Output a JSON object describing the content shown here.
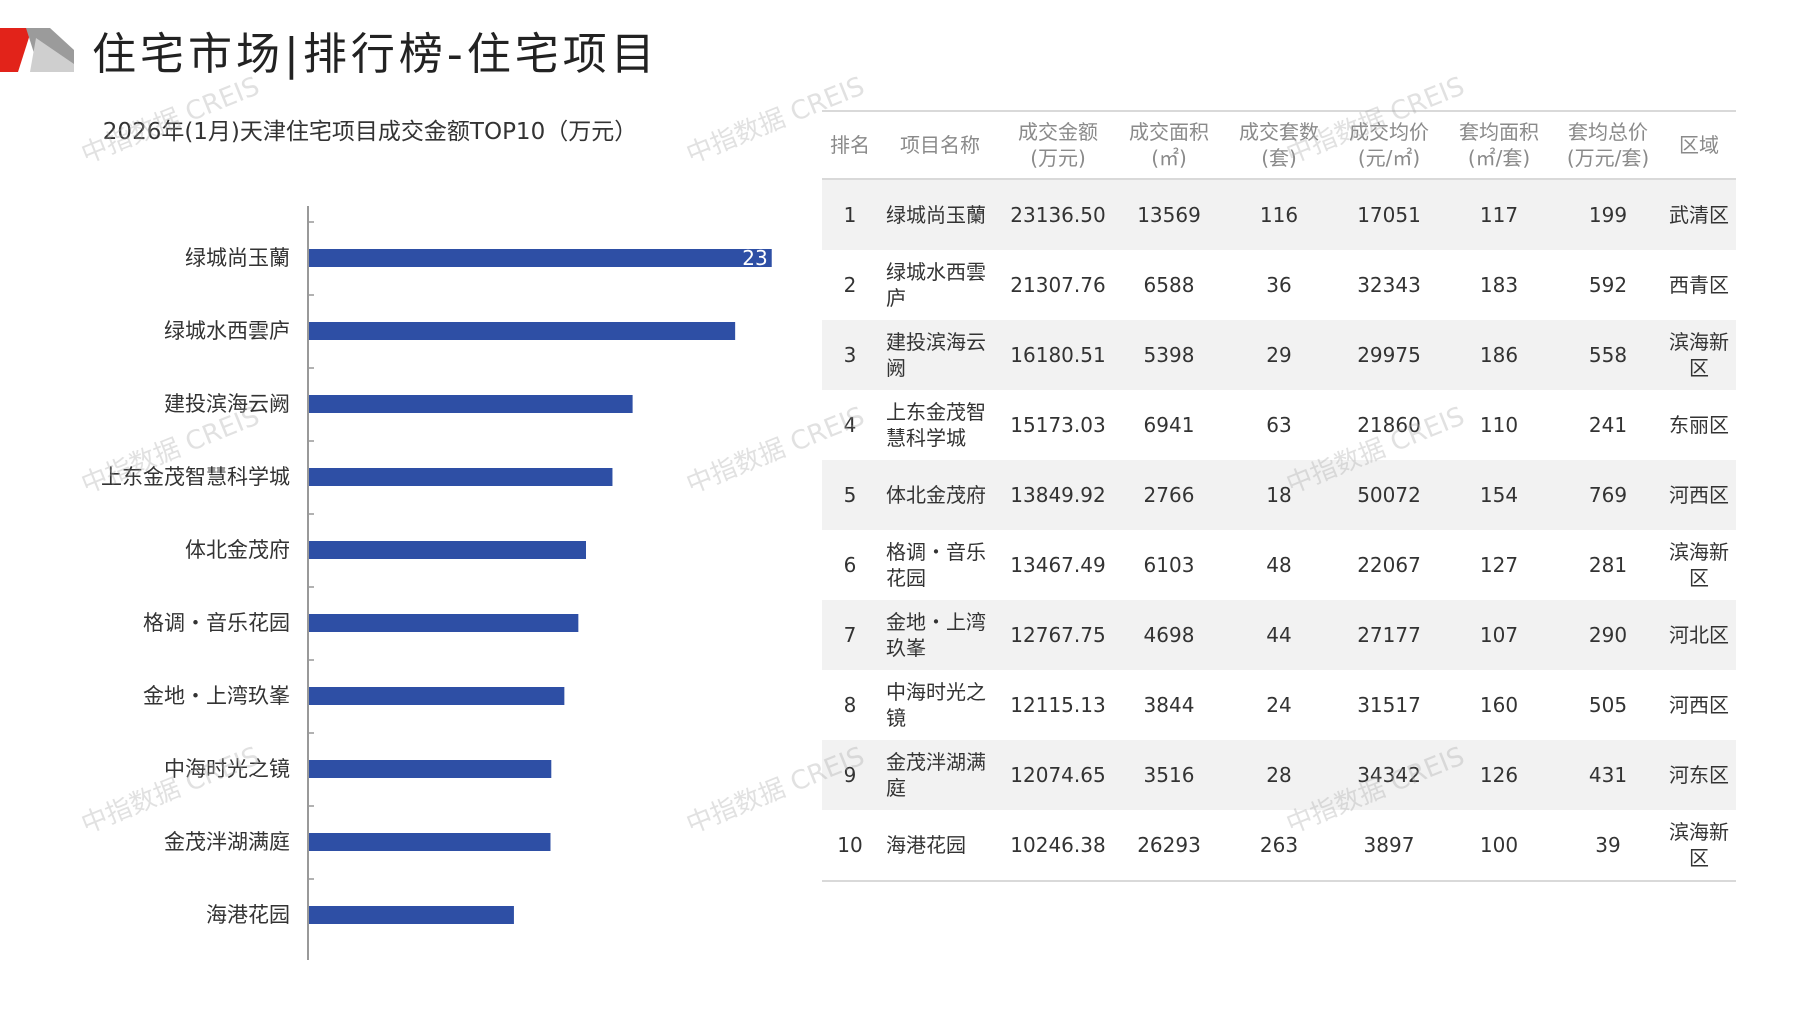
{
  "page": {
    "title": "住宅市场|排行榜-住宅项目",
    "colors": {
      "bar": "#2e4fa5",
      "logo_red": "#e2231a",
      "logo_gray": "#9b9b9b"
    }
  },
  "watermark": "中指数据 CREIS",
  "chart_data": {
    "type": "bar",
    "orientation": "horizontal",
    "title": "2026年(1月)天津住宅项目成交金额TOP10（万元）",
    "categories": [
      "绿城尚玉蘭",
      "绿城水西雲庐",
      "建投滨海云阙",
      "上东金茂智慧科学城",
      "体北金茂府",
      "格调・音乐花园",
      "金地・上湾玖峯",
      "中海时光之镜",
      "金茂泮湖满庭",
      "海港花园"
    ],
    "values": [
      23136.5,
      21307.76,
      16180.51,
      15173.03,
      13849.92,
      13467.49,
      12767.75,
      12115.13,
      12074.65,
      10246.38
    ],
    "data_labels": [
      "23",
      "",
      "",
      "",
      "",
      "",
      "",
      "",
      "",
      ""
    ],
    "xlim": [
      0,
      25000
    ],
    "grid": false,
    "legend": "none"
  },
  "table": {
    "headers": [
      [
        "排名"
      ],
      [
        "项目名称"
      ],
      [
        "成交金额",
        "(万元)"
      ],
      [
        "成交面积",
        "(㎡)"
      ],
      [
        "成交套数",
        "(套)"
      ],
      [
        "成交均价",
        "(元/㎡)"
      ],
      [
        "套均面积",
        "(㎡/套)"
      ],
      [
        "套均总价",
        "(万元/套)"
      ],
      [
        "区域"
      ]
    ],
    "rows": [
      [
        "1",
        "绿城尚玉蘭",
        "23136.50",
        "13569",
        "116",
        "17051",
        "117",
        "199",
        "武清区"
      ],
      [
        "2",
        "绿城水西雲庐",
        "21307.76",
        "6588",
        "36",
        "32343",
        "183",
        "592",
        "西青区"
      ],
      [
        "3",
        "建投滨海云阙",
        "16180.51",
        "5398",
        "29",
        "29975",
        "186",
        "558",
        "滨海新区"
      ],
      [
        "4",
        "上东金茂智慧科学城",
        "15173.03",
        "6941",
        "63",
        "21860",
        "110",
        "241",
        "东丽区"
      ],
      [
        "5",
        "体北金茂府",
        "13849.92",
        "2766",
        "18",
        "50072",
        "154",
        "769",
        "河西区"
      ],
      [
        "6",
        "格调・音乐花园",
        "13467.49",
        "6103",
        "48",
        "22067",
        "127",
        "281",
        "滨海新区"
      ],
      [
        "7",
        "金地・上湾玖峯",
        "12767.75",
        "4698",
        "44",
        "27177",
        "107",
        "290",
        "河北区"
      ],
      [
        "8",
        "中海时光之镜",
        "12115.13",
        "3844",
        "24",
        "31517",
        "160",
        "505",
        "河西区"
      ],
      [
        "9",
        "金茂泮湖满庭",
        "12074.65",
        "3516",
        "28",
        "34342",
        "126",
        "431",
        "河东区"
      ],
      [
        "10",
        "海港花园",
        "10246.38",
        "26293",
        "263",
        "3897",
        "100",
        "39",
        "滨海新区"
      ]
    ]
  }
}
